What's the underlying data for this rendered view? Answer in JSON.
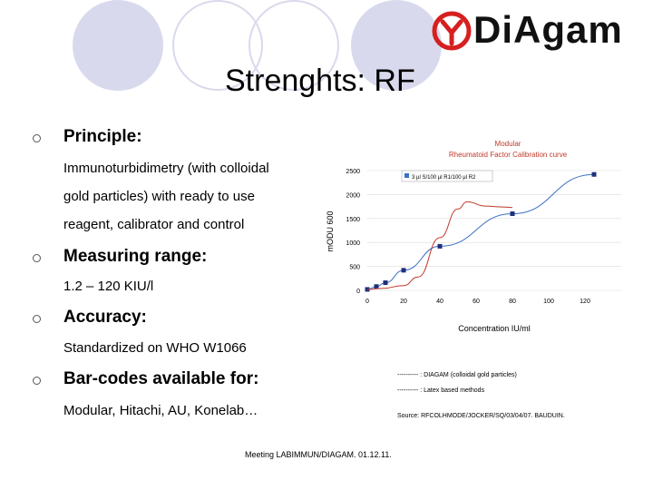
{
  "logo": {
    "text": "DiAgam",
    "brand_color": "#d6201f"
  },
  "title": "Strenghts: RF",
  "sections": [
    {
      "heading": "Principle:",
      "lines": [
        "Immunoturbidimetry (with colloidal",
        "gold particles) with ready to use",
        "reagent, calibrator and control"
      ]
    },
    {
      "heading": "Measuring range:",
      "lines": [
        "1.2 – 120 KIU/l"
      ]
    },
    {
      "heading": "Accuracy:",
      "lines": [
        "Standardized on WHO W1066"
      ]
    },
    {
      "heading": "Bar-codes available for:",
      "lines": [
        "Modular, Hitachi, AU, Konelab…"
      ]
    }
  ],
  "chart_data": {
    "type": "line",
    "title": "Modular Rheumatoid Factor Calibration curve",
    "title_color": "#c0392b",
    "xlabel": "Concentration IU/ml",
    "ylabel": "mODU 600",
    "xlim": [
      0,
      140
    ],
    "ylim": [
      0,
      2500
    ],
    "x_ticks": [
      "0",
      "20",
      "40",
      "60",
      "80",
      "100",
      "120"
    ],
    "y_ticks": [
      "0",
      "500",
      "1000",
      "1500",
      "2000",
      "2500"
    ],
    "legend": {
      "label": "3 µl S/100 µl R1/100 µl R2",
      "placement": "top-center"
    },
    "grid": true,
    "series": [
      {
        "color": "#3a6fc4",
        "x": [
          0,
          5,
          10,
          20,
          40,
          80,
          125
        ],
        "y": [
          20,
          80,
          160,
          420,
          920,
          1600,
          2420
        ],
        "markers": true
      },
      {
        "color": "#c0392b",
        "x": [
          0,
          8,
          20,
          28,
          40,
          50,
          55,
          65,
          75,
          80
        ],
        "y": [
          20,
          40,
          100,
          280,
          1100,
          1700,
          1850,
          1760,
          1740,
          1730
        ],
        "markers": false
      }
    ]
  },
  "legend_notes": [
    "---------- : DIAGAM (colloidal gold particles)",
    "---------- : Latex based methods"
  ],
  "source": "Source: RFCOLHMODE/JOCKER/SQ/03/04/07. BAUDUIN.",
  "footer": "Meeting LABIMMUN/DIAGAM. 01.12.11."
}
